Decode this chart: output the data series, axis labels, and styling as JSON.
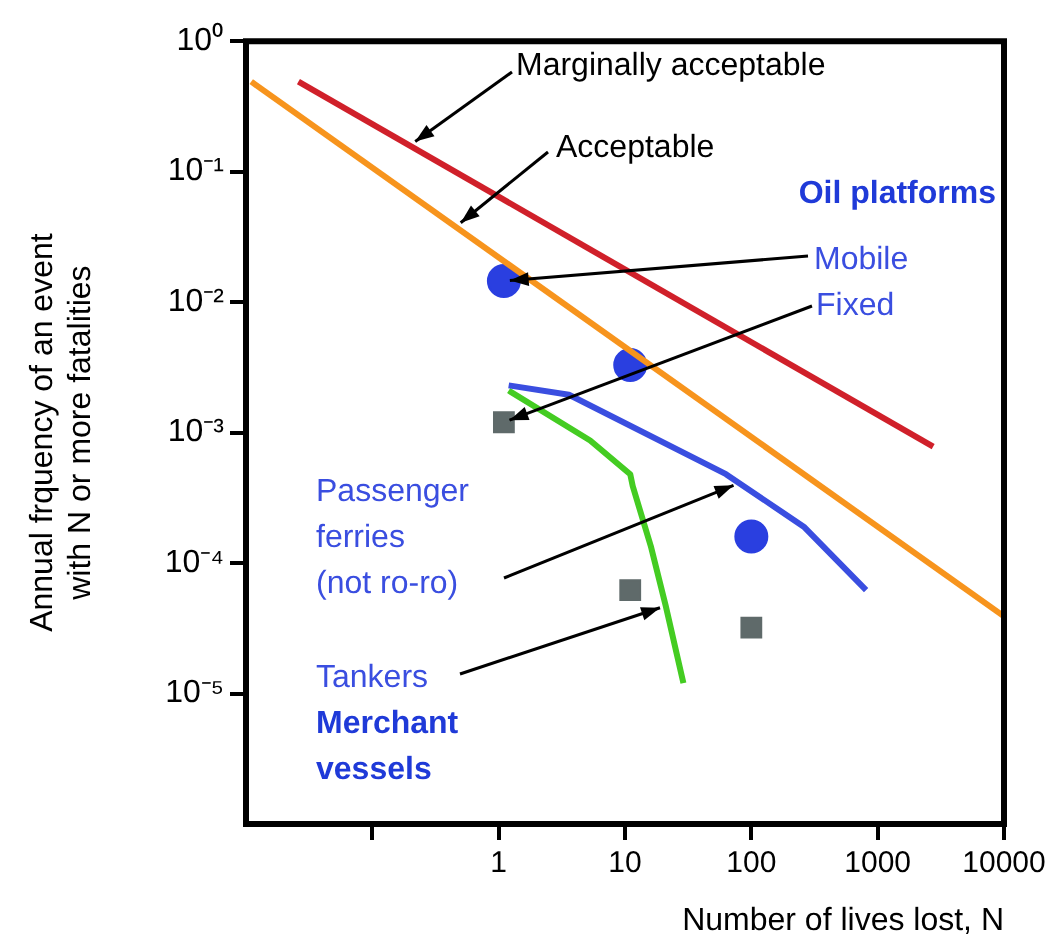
{
  "chart_data": {
    "type": "line",
    "xlabel": "Number of lives lost, N",
    "ylabel": "Annual frquency of an event\nwith N or more fatalities",
    "log": "xy",
    "grid": false,
    "legend": false,
    "xlim": [
      0.01,
      10000
    ],
    "xticks": [
      {
        "value": 0.1,
        "label": null
      },
      1,
      10,
      100,
      1000,
      10000
    ],
    "ylim": [
      1e-06,
      1
    ],
    "yticks": [
      {
        "value": 1,
        "label": "10⁰"
      },
      {
        "value": 0.1,
        "label": "10⁻¹"
      },
      {
        "value": 0.01,
        "label": "10⁻²"
      },
      {
        "value": 0.001,
        "label": "10⁻³"
      },
      {
        "value": 0.0001,
        "label": "10⁻⁴"
      },
      {
        "value": 1e-05,
        "label": "10⁻⁵"
      }
    ],
    "series": [
      {
        "type": "line",
        "color": "#d0202a",
        "x": [
          0.026,
          2750
        ],
        "values": [
          0.49,
          0.00078
        ]
      },
      {
        "type": "line",
        "color": "#f7941d",
        "x": [
          0.011,
          10000
        ],
        "values": [
          0.49,
          3.9e-05
        ]
      },
      {
        "type": "line",
        "color": "#3a4ee0",
        "x": [
          1.2,
          3.6,
          63,
          260,
          810
        ],
        "values": [
          0.0023,
          0.00195,
          0.00048,
          0.00019,
          6.2e-05
        ]
      },
      {
        "type": "line",
        "color": "#44cc22",
        "x": [
          1.2,
          5.3,
          11,
          11.5,
          16,
          21,
          29
        ],
        "values": [
          0.0021,
          0.00087,
          0.00048,
          0.00039,
          0.000135,
          4.7e-05,
          1.2e-05
        ]
      },
      {
        "type": "scatter",
        "marker": "circle",
        "color": "#2a3fe0",
        "x": [
          1.1,
          11,
          100
        ],
        "values": [
          0.0145,
          0.0033,
          0.00016
        ]
      },
      {
        "type": "scatter",
        "marker": "square",
        "color": "#5f6a6a",
        "x": [
          1.1,
          11,
          100
        ],
        "values": [
          0.0012,
          6.2e-05,
          3.2e-05
        ]
      }
    ],
    "annotations": [
      {
        "text": "Marginally acceptable",
        "x": 0.2,
        "y": 0.16
      },
      {
        "text": "Acceptable",
        "x": 0.46,
        "y": 0.038
      },
      "Oil platforms",
      {
        "text": "Mobile",
        "x": 1.1,
        "y": 0.0145
      },
      {
        "text": "Fixed",
        "x": 1.1,
        "y": 0.0012
      },
      {
        "text": "Passenger\nferries\n(not ro-ro)",
        "x": 80,
        "y": 0.00041
      },
      {
        "text": "Tankers",
        "x": 21,
        "y": 4.7e-05
      },
      "Merchant\nvessels"
    ]
  }
}
